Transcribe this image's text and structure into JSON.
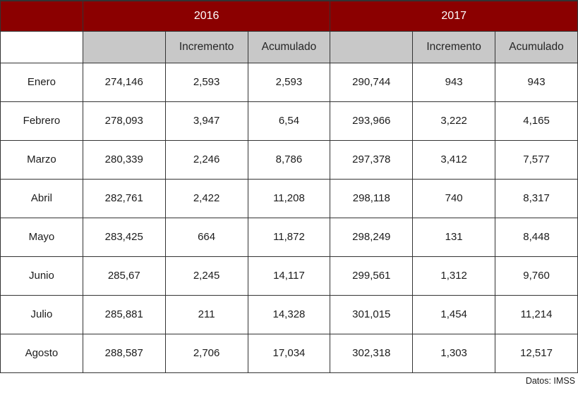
{
  "colors": {
    "header_red": "#8b0000",
    "header_gray": "#c8c8c8",
    "border": "#333333",
    "text": "#1c1c1c"
  },
  "chart_data": {
    "type": "table",
    "title": "",
    "column_groups": [
      "2016",
      "2017"
    ],
    "columns": [
      "",
      "",
      "Incremento",
      "Acumulado",
      "",
      "Incremento",
      "Acumulado"
    ],
    "row_labels": [
      "Enero",
      "Febrero",
      "Marzo",
      "Abril",
      "Mayo",
      "Junio",
      "Julio",
      "Agosto"
    ],
    "rows": [
      [
        "274,146",
        "2,593",
        "2,593",
        "290,744",
        "943",
        "943"
      ],
      [
        "278,093",
        "3,947",
        "6,54",
        "293,966",
        "3,222",
        "4,165"
      ],
      [
        "280,339",
        "2,246",
        "8,786",
        "297,378",
        "3,412",
        "7,577"
      ],
      [
        "282,761",
        "2,422",
        "11,208",
        "298,118",
        "740",
        "8,317"
      ],
      [
        "283,425",
        "664",
        "11,872",
        "298,249",
        "131",
        "8,448"
      ],
      [
        "285,67",
        "2,245",
        "14,117",
        "299,561",
        "1,312",
        "9,760"
      ],
      [
        "285,881",
        "211",
        "14,328",
        "301,015",
        "1,454",
        "11,214"
      ],
      [
        "288,587",
        "2,706",
        "17,034",
        "302,318",
        "1,303",
        "12,517"
      ]
    ],
    "source_note": "Datos: IMSS",
    "layout": {
      "grid": true,
      "year_band_color": "#8b0000",
      "subheader_band_color": "#c8c8c8"
    }
  }
}
